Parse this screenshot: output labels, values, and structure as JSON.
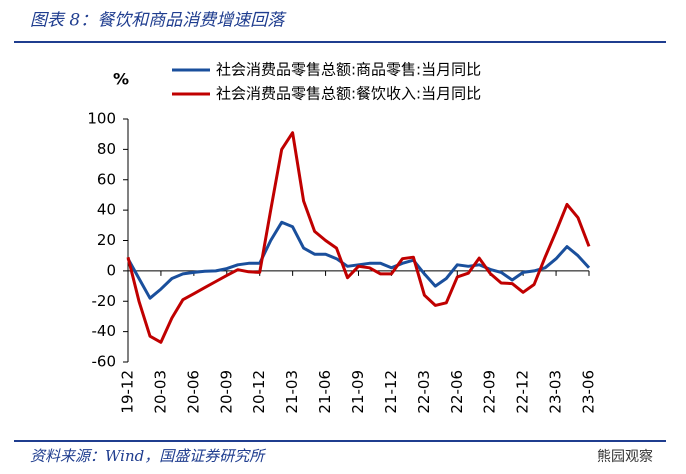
{
  "header": {
    "title": "图表 8：餐饮和商品消费增速回落"
  },
  "chart_data": {
    "type": "line",
    "y_unit": "%",
    "categories": [
      "19-12",
      null,
      null,
      "20-03",
      null,
      null,
      "20-06",
      null,
      null,
      "20-09",
      null,
      null,
      "20-12",
      null,
      null,
      "21-03",
      null,
      null,
      "21-06",
      null,
      null,
      "21-09",
      null,
      null,
      "21-12",
      null,
      null,
      "22-03",
      null,
      null,
      "22-06",
      null,
      null,
      "22-09",
      null,
      null,
      "22-12",
      null,
      null,
      "23-03",
      null,
      null,
      "23-06"
    ],
    "series": [
      {
        "name": "社会消费品零售总额:商品零售:当月同比",
        "color": "#1a4f9c",
        "values": [
          8,
          -5,
          -18,
          -12,
          -5,
          -2,
          -1,
          -0.3,
          0,
          1.5,
          4,
          5,
          5,
          20,
          32,
          29,
          15,
          11,
          11,
          8,
          3,
          4,
          5,
          5,
          2,
          5,
          7,
          -2,
          -10,
          -5,
          4,
          3,
          4,
          1,
          -1,
          -6,
          -1,
          0,
          2,
          8,
          16,
          10,
          2
        ]
      },
      {
        "name": "社会消费品零售总额:餐饮收入:当月同比",
        "color": "#c00000",
        "values": [
          9,
          -20,
          -43,
          -47,
          -31,
          -19,
          -15,
          -11,
          -7,
          -3,
          0.8,
          -0.6,
          -1,
          40,
          80,
          91,
          46,
          26,
          20,
          15,
          -4.5,
          3,
          2,
          -2,
          -2,
          8,
          9,
          -16,
          -22.7,
          -21,
          -4,
          -1.5,
          8.4,
          -1.7,
          -8,
          -8.4,
          -14.1,
          -9,
          9,
          26,
          43.8,
          35,
          16.1
        ]
      }
    ],
    "ylim": [
      -60,
      100
    ],
    "yticks": [
      -60,
      -40,
      -20,
      0,
      20,
      40,
      60,
      80,
      100
    ],
    "legend": "top"
  },
  "footer": {
    "source": "资料来源：Wind，国盛证券研究所",
    "watermark": "熊园观察"
  }
}
